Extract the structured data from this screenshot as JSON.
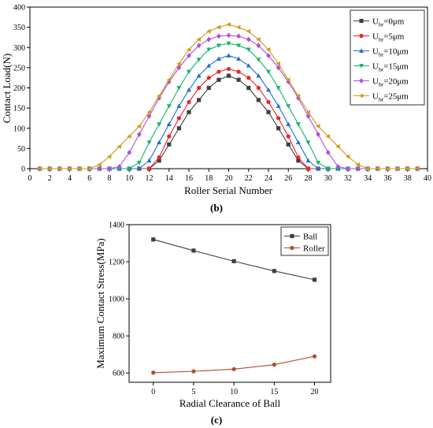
{
  "chart_data": [
    {
      "type": "line",
      "panel_label": "(b)",
      "xlabel": "Roller Serial Number",
      "ylabel": "Contact Load(N)",
      "xlim": [
        0,
        40
      ],
      "ylim": [
        0,
        400
      ],
      "xticks": [
        0,
        2,
        4,
        6,
        8,
        10,
        12,
        14,
        16,
        18,
        20,
        22,
        24,
        26,
        28,
        30,
        32,
        34,
        36,
        38,
        40
      ],
      "yticks": [
        0,
        50,
        100,
        150,
        200,
        250,
        300,
        350,
        400
      ],
      "x": [
        1,
        2,
        3,
        4,
        5,
        6,
        7,
        8,
        9,
        10,
        11,
        12,
        13,
        14,
        15,
        16,
        17,
        18,
        19,
        20,
        21,
        22,
        23,
        24,
        25,
        26,
        27,
        28,
        29,
        30,
        31,
        32,
        33,
        34,
        35,
        36,
        37,
        38,
        39
      ],
      "legend_position": "top-right",
      "grid": false,
      "series": [
        {
          "name": "U",
          "sub": "br",
          "suffix": "=0μm",
          "color": "#404040",
          "marker": "square",
          "values": [
            0,
            0,
            0,
            0,
            0,
            0,
            0,
            0,
            0,
            0,
            0,
            0,
            20,
            60,
            100,
            140,
            170,
            200,
            220,
            230,
            220,
            200,
            170,
            140,
            100,
            60,
            20,
            0,
            0,
            0,
            0,
            0,
            0,
            0,
            0,
            0,
            0,
            0,
            0
          ]
        },
        {
          "name": "U",
          "sub": "br",
          "suffix": "=5μm",
          "color": "#e8272b",
          "marker": "circle",
          "values": [
            0,
            0,
            0,
            0,
            0,
            0,
            0,
            0,
            0,
            0,
            0,
            0,
            28,
            80,
            125,
            165,
            200,
            225,
            240,
            247,
            240,
            225,
            200,
            165,
            125,
            80,
            28,
            0,
            0,
            0,
            0,
            0,
            0,
            0,
            0,
            0,
            0,
            0,
            0
          ]
        },
        {
          "name": "U",
          "sub": "br",
          "suffix": "=10μm",
          "color": "#1f6fd1",
          "marker": "triangle-up",
          "values": [
            0,
            0,
            0,
            0,
            0,
            0,
            0,
            0,
            0,
            0,
            0,
            20,
            65,
            110,
            155,
            195,
            230,
            255,
            272,
            280,
            272,
            255,
            230,
            195,
            155,
            110,
            65,
            20,
            0,
            0,
            0,
            0,
            0,
            0,
            0,
            0,
            0,
            0,
            0
          ]
        },
        {
          "name": "U",
          "sub": "br",
          "suffix": "=15μm",
          "color": "#16b36e",
          "marker": "triangle-down",
          "values": [
            0,
            0,
            0,
            0,
            0,
            0,
            0,
            0,
            0,
            0,
            15,
            65,
            110,
            155,
            200,
            240,
            270,
            295,
            305,
            310,
            305,
            295,
            270,
            240,
            200,
            155,
            110,
            65,
            15,
            0,
            0,
            0,
            0,
            0,
            0,
            0,
            0,
            0,
            0
          ]
        },
        {
          "name": "U",
          "sub": "br",
          "suffix": "=20μm",
          "color": "#b14fe0",
          "marker": "diamond",
          "values": [
            0,
            0,
            0,
            0,
            0,
            0,
            0,
            0,
            5,
            40,
            85,
            130,
            175,
            215,
            250,
            280,
            305,
            320,
            328,
            330,
            328,
            320,
            305,
            280,
            250,
            215,
            175,
            130,
            85,
            40,
            5,
            0,
            0,
            0,
            0,
            0,
            0,
            0,
            0
          ]
        },
        {
          "name": "U",
          "sub": "br",
          "suffix": "=25μm",
          "color": "#d19a17",
          "marker": "triangle-left",
          "values": [
            0,
            0,
            0,
            0,
            0,
            0,
            10,
            30,
            55,
            80,
            105,
            140,
            180,
            220,
            260,
            295,
            320,
            340,
            350,
            357,
            350,
            340,
            320,
            295,
            260,
            220,
            180,
            140,
            105,
            80,
            55,
            30,
            10,
            0,
            0,
            0,
            0,
            0,
            0
          ]
        }
      ]
    },
    {
      "type": "line",
      "panel_label": "(c)",
      "xlabel": "Radial Clearance of Ball",
      "ylabel": "Maximum Contact Stress(MPa)",
      "x": [
        0,
        5,
        10,
        15,
        20
      ],
      "xlim": [
        -3,
        22
      ],
      "ylim": [
        550,
        1400
      ],
      "xticks": [
        0,
        5,
        10,
        15,
        20
      ],
      "yticks": [
        600,
        800,
        1000,
        1200,
        1400
      ],
      "legend_position": "top-right",
      "grid": false,
      "series": [
        {
          "name": "Ball",
          "color": "#404040",
          "marker": "square",
          "values": [
            1320,
            1260,
            1203,
            1150,
            1103
          ]
        },
        {
          "name": "Roller",
          "color": "#b54a2a",
          "marker": "circle",
          "values": [
            602,
            609,
            621,
            645,
            690
          ]
        }
      ]
    }
  ]
}
